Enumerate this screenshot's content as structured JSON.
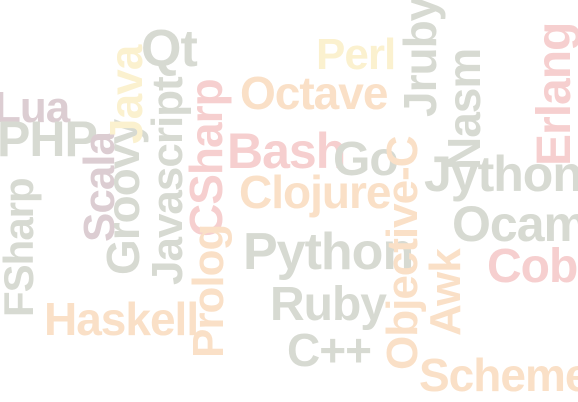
{
  "palette": {
    "gray": "#d7dad2",
    "peach": "#fae0c7",
    "cream": "#fbf1cf",
    "pink": "#f6cfcf",
    "mauve": "#dccdd2",
    "background": "#ffffff"
  },
  "words": [
    {
      "id": "lua",
      "text": "Lua",
      "color": "mauve",
      "vertical": false
    },
    {
      "id": "php",
      "text": "PHP",
      "color": "gray",
      "vertical": false
    },
    {
      "id": "fsharp",
      "text": "FSharp",
      "color": "gray",
      "vertical": true
    },
    {
      "id": "scala",
      "text": "Scala",
      "color": "mauve",
      "vertical": true
    },
    {
      "id": "groovy",
      "text": "Groovy",
      "color": "gray",
      "vertical": true
    },
    {
      "id": "java",
      "text": "Java",
      "color": "cream",
      "vertical": true
    },
    {
      "id": "javascript",
      "text": "Javascript",
      "color": "gray",
      "vertical": true
    },
    {
      "id": "qt",
      "text": "Qt",
      "color": "gray",
      "vertical": false
    },
    {
      "id": "csharp",
      "text": "CSharp",
      "color": "pink",
      "vertical": true
    },
    {
      "id": "prolog",
      "text": "Prolog",
      "color": "peach",
      "vertical": true
    },
    {
      "id": "haskell",
      "text": "Haskell",
      "color": "peach",
      "vertical": false
    },
    {
      "id": "perl",
      "text": "Perl",
      "color": "cream",
      "vertical": false
    },
    {
      "id": "octave",
      "text": "Octave",
      "color": "peach",
      "vertical": false
    },
    {
      "id": "bash",
      "text": "Bash",
      "color": "pink",
      "vertical": false
    },
    {
      "id": "go",
      "text": "Go",
      "color": "gray",
      "vertical": false
    },
    {
      "id": "clojure",
      "text": "Clojure",
      "color": "peach",
      "vertical": false
    },
    {
      "id": "python",
      "text": "Python",
      "color": "gray",
      "vertical": false
    },
    {
      "id": "ruby",
      "text": "Ruby",
      "color": "gray",
      "vertical": false
    },
    {
      "id": "cpp",
      "text": "C++",
      "color": "gray",
      "vertical": false
    },
    {
      "id": "jruby",
      "text": "Jruby",
      "color": "gray",
      "vertical": true
    },
    {
      "id": "objective-c",
      "text": "Objective-C",
      "color": "peach",
      "vertical": true
    },
    {
      "id": "nasm",
      "text": "Nasm",
      "color": "gray",
      "vertical": true
    },
    {
      "id": "awk",
      "text": "Awk",
      "color": "peach",
      "vertical": true
    },
    {
      "id": "jython",
      "text": "Jython",
      "color": "gray",
      "vertical": false
    },
    {
      "id": "ocaml",
      "text": "Ocaml",
      "color": "gray",
      "vertical": false
    },
    {
      "id": "erlang",
      "text": "Erlang",
      "color": "pink",
      "vertical": true
    },
    {
      "id": "cobol",
      "text": "Cobol",
      "color": "pink",
      "vertical": false
    },
    {
      "id": "scheme",
      "text": "Scheme",
      "color": "peach",
      "vertical": false
    }
  ]
}
